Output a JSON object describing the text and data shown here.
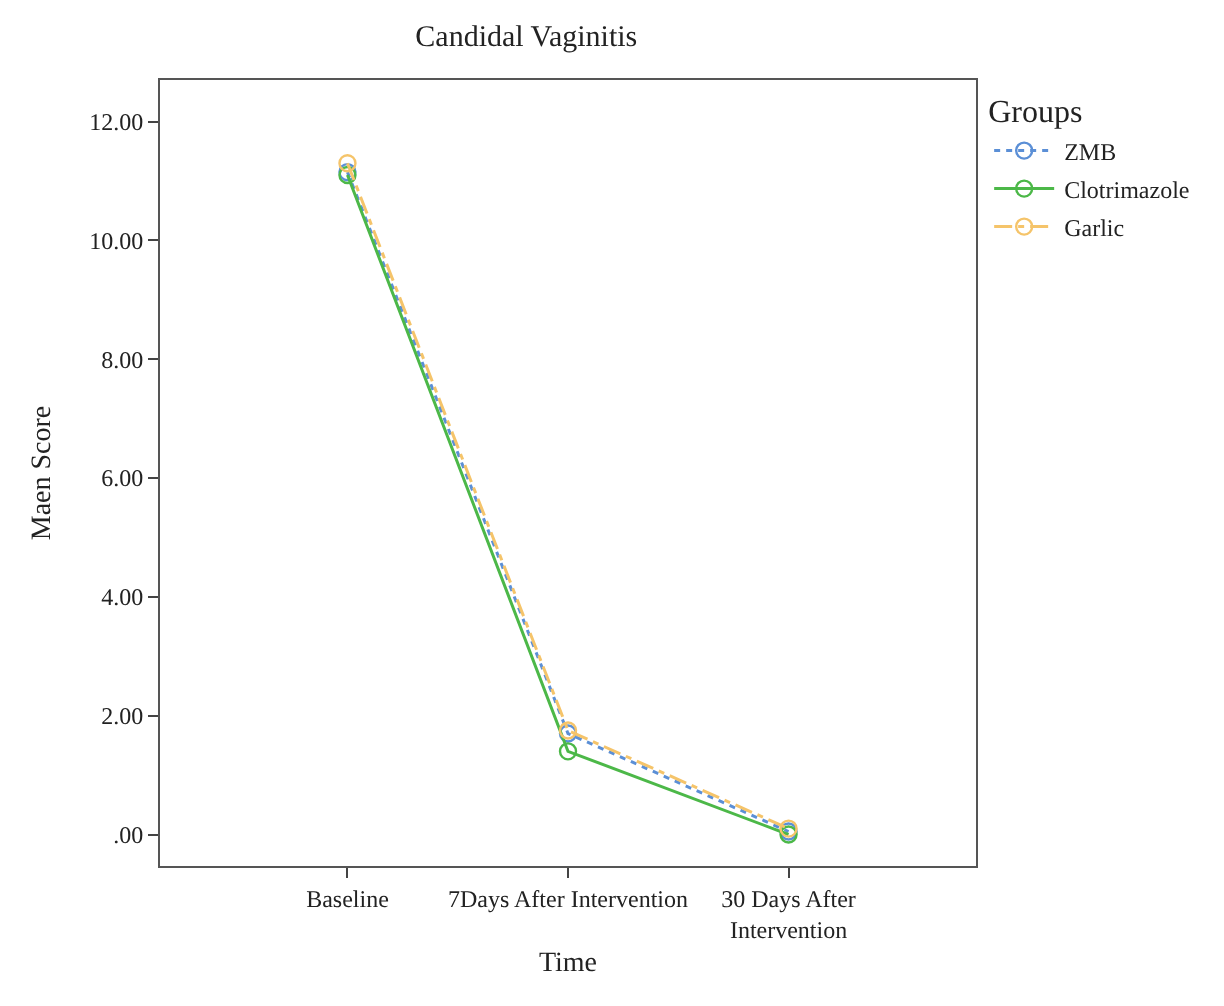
{
  "chart_data": {
    "type": "line",
    "title": "Candidal Vaginitis",
    "xlabel": "Time",
    "ylabel": "Maen Score",
    "legend_title": "Groups",
    "categories": [
      "Baseline",
      "7Days After Intervention",
      "30 Days After\nIntervention"
    ],
    "series": [
      {
        "name": "ZMB",
        "color": "#5b8fd6",
        "line_style": "dotted",
        "values": [
          11.15,
          1.7,
          0.05
        ]
      },
      {
        "name": "Clotrimazole",
        "color": "#4cb848",
        "line_style": "solid",
        "values": [
          11.1,
          1.4,
          0.0
        ]
      },
      {
        "name": "Garlic",
        "color": "#f5c46a",
        "line_style": "dashdot",
        "values": [
          11.3,
          1.75,
          0.1
        ]
      }
    ],
    "ylim": [
      -0.53,
      12.7
    ],
    "yticks": [
      {
        "value": 0,
        "label": ".00"
      },
      {
        "value": 2,
        "label": "2.00"
      },
      {
        "value": 4,
        "label": "4.00"
      },
      {
        "value": 6,
        "label": "6.00"
      },
      {
        "value": 8,
        "label": "8.00"
      },
      {
        "value": 10,
        "label": "10.00"
      },
      {
        "value": 12,
        "label": "12.00"
      }
    ],
    "marker": "circle",
    "legend": "top right"
  }
}
